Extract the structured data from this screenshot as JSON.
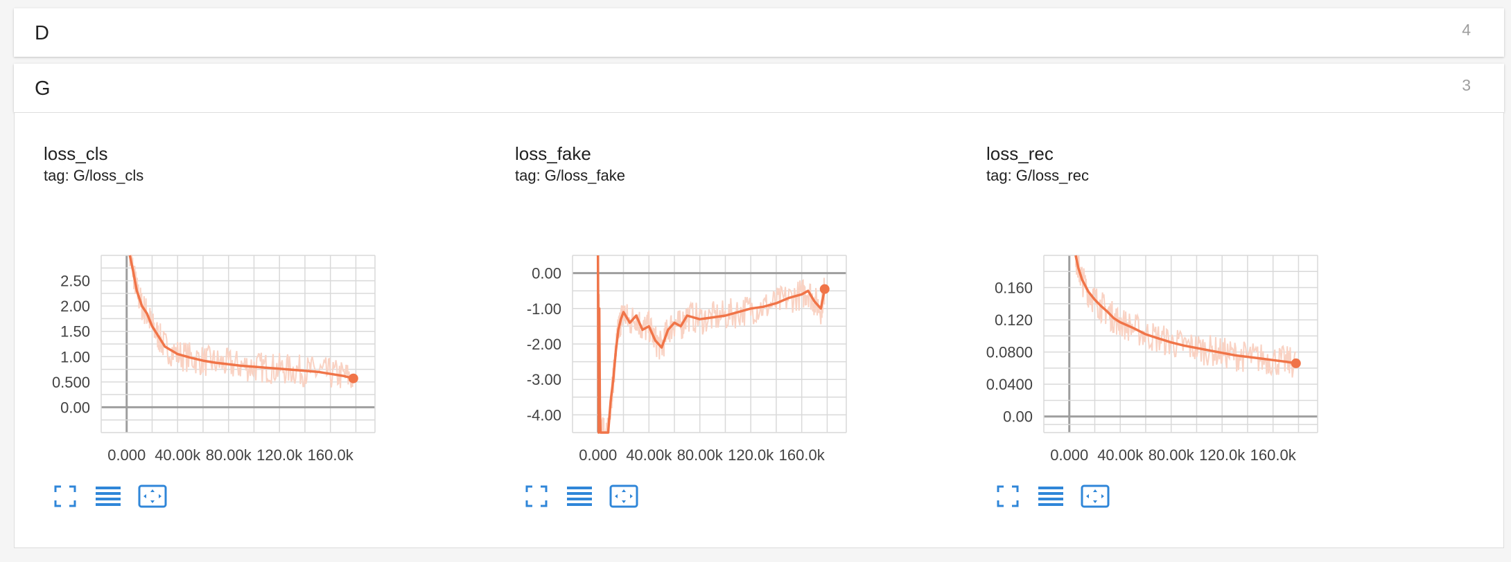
{
  "groups": [
    {
      "name": "D",
      "count": "4"
    },
    {
      "name": "G",
      "count": "3"
    }
  ],
  "colors": {
    "line": "#f07448",
    "line_raw": "#f9d2c3",
    "grid": "#d9d9d9",
    "axis": "#9e9e9e",
    "button": "#2f86d8"
  },
  "cards": [
    {
      "title": "loss_cls",
      "tag": "tag: G/loss_cls"
    },
    {
      "title": "loss_fake",
      "tag": "tag: G/loss_fake"
    },
    {
      "title": "loss_rec",
      "tag": "tag: G/loss_rec"
    }
  ],
  "buttons": {
    "icons": [
      "fullscreen-icon",
      "list-icon",
      "fit-domain-icon"
    ]
  },
  "chart_data": [
    {
      "type": "line",
      "title": "loss_cls",
      "tag": "tag: G/loss_cls",
      "xlim": [
        -20000,
        195000
      ],
      "ylim": [
        -0.5,
        3.0
      ],
      "xticks": [
        0,
        20000,
        40000,
        60000,
        80000,
        100000,
        120000,
        140000,
        160000,
        180000
      ],
      "xticklabels": [
        "0.000",
        "",
        "40.00k",
        "",
        "80.00k",
        "",
        "120.0k",
        "",
        "160.0k",
        ""
      ],
      "yticks": [
        -0.25,
        0,
        0.25,
        0.5,
        0.75,
        1.0,
        1.25,
        1.5,
        1.75,
        2.0,
        2.25,
        2.5,
        2.75
      ],
      "yticklabels": [
        "",
        "0.00",
        "",
        "0.500",
        "",
        "1.00",
        "",
        "1.50",
        "",
        "2.00",
        "",
        "2.50",
        ""
      ],
      "x": [
        2500,
        5000,
        8000,
        12000,
        16000,
        20000,
        25000,
        30000,
        40000,
        50000,
        60000,
        70000,
        80000,
        90000,
        100000,
        110000,
        120000,
        130000,
        140000,
        150000,
        160000,
        170000,
        178000
      ],
      "y": [
        3.1,
        2.7,
        2.3,
        2.0,
        1.85,
        1.6,
        1.4,
        1.2,
        1.05,
        0.98,
        0.92,
        0.88,
        0.85,
        0.82,
        0.8,
        0.78,
        0.76,
        0.74,
        0.72,
        0.7,
        0.66,
        0.62,
        0.57
      ]
    },
    {
      "type": "line",
      "title": "loss_fake",
      "tag": "tag: G/loss_fake",
      "xlim": [
        -20000,
        195000
      ],
      "ylim": [
        -4.5,
        0.5
      ],
      "xticks": [
        0,
        20000,
        40000,
        60000,
        80000,
        100000,
        120000,
        140000,
        160000,
        180000
      ],
      "xticklabels": [
        "0.000",
        "",
        "40.00k",
        "",
        "80.00k",
        "",
        "120.0k",
        "",
        "160.0k",
        ""
      ],
      "yticks": [
        -4.0,
        -3.5,
        -3.0,
        -2.5,
        -2.0,
        -1.5,
        -1.0,
        -0.5,
        0.0
      ],
      "yticklabels": [
        "-4.00",
        "",
        "-3.00",
        "",
        "-2.00",
        "",
        "-1.00",
        "",
        "0.00"
      ],
      "x": [
        0,
        500,
        1000,
        1500,
        2000,
        4000,
        6000,
        8000,
        10000,
        12000,
        14000,
        16000,
        18000,
        20000,
        25000,
        30000,
        35000,
        40000,
        45000,
        50000,
        55000,
        60000,
        65000,
        70000,
        80000,
        90000,
        100000,
        110000,
        120000,
        130000,
        140000,
        150000,
        160000,
        165000,
        170000,
        175000,
        178000
      ],
      "y": [
        0.5,
        -4.5,
        -1.0,
        -3.8,
        -4.5,
        -4.5,
        -4.5,
        -4.5,
        -3.6,
        -3.0,
        -2.2,
        -1.6,
        -1.3,
        -1.1,
        -1.4,
        -1.2,
        -1.6,
        -1.5,
        -1.9,
        -2.1,
        -1.6,
        -1.4,
        -1.5,
        -1.2,
        -1.3,
        -1.25,
        -1.2,
        -1.1,
        -1.0,
        -0.95,
        -0.85,
        -0.7,
        -0.6,
        -0.5,
        -0.8,
        -1.0,
        -0.45
      ]
    },
    {
      "type": "line",
      "title": "loss_rec",
      "tag": "tag: G/loss_rec",
      "xlim": [
        -20000,
        195000
      ],
      "ylim": [
        -0.02,
        0.2
      ],
      "xticks": [
        0,
        20000,
        40000,
        60000,
        80000,
        100000,
        120000,
        140000,
        160000,
        180000
      ],
      "xticklabels": [
        "0.000",
        "",
        "40.00k",
        "",
        "80.00k",
        "",
        "120.0k",
        "",
        "160.0k",
        ""
      ],
      "yticks": [
        -0.01,
        0,
        0.02,
        0.04,
        0.06,
        0.08,
        0.1,
        0.12,
        0.14,
        0.16,
        0.18
      ],
      "yticklabels": [
        "",
        "0.00",
        "",
        "0.0400",
        "",
        "0.0800",
        "",
        "0.120",
        "",
        "0.160",
        ""
      ],
      "x": [
        5000,
        7000,
        10000,
        15000,
        20000,
        25000,
        30000,
        35000,
        40000,
        50000,
        60000,
        70000,
        80000,
        90000,
        100000,
        110000,
        120000,
        130000,
        140000,
        150000,
        160000,
        170000,
        178000
      ],
      "y": [
        0.2,
        0.185,
        0.17,
        0.155,
        0.145,
        0.137,
        0.13,
        0.122,
        0.117,
        0.11,
        0.102,
        0.097,
        0.092,
        0.088,
        0.085,
        0.082,
        0.079,
        0.076,
        0.074,
        0.072,
        0.07,
        0.068,
        0.066
      ]
    }
  ]
}
